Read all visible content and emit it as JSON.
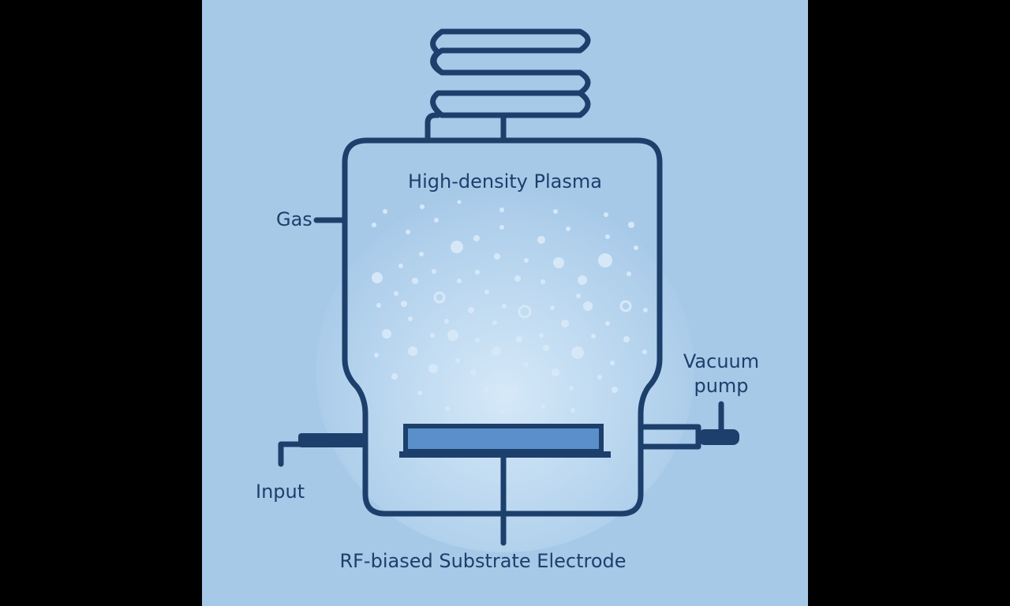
{
  "labels": {
    "title": "High-density Plasma",
    "gas": "Gas",
    "vacuum_line1": "Vacuum",
    "vacuum_line2": "pump",
    "input": "Input",
    "electrode": "RF-biased Substrate Electrode"
  },
  "colors": {
    "background": "#a6c9e8",
    "line": "#1d3f6b",
    "substrate_fill": "#5b8fca",
    "particle": "#d6e8f8",
    "side_bars": "#000000"
  }
}
